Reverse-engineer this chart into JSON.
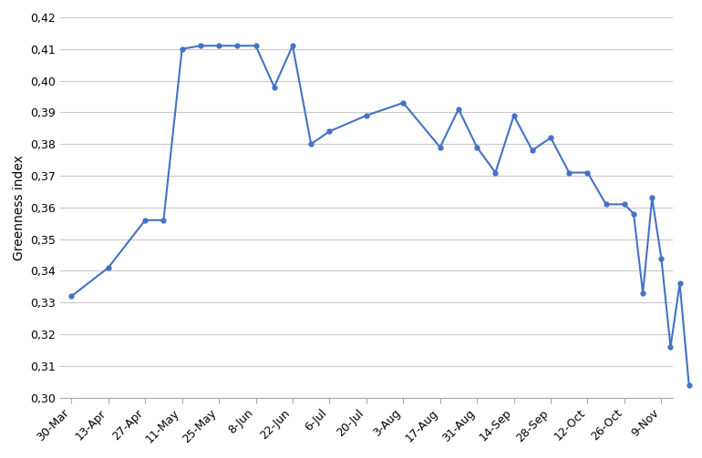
{
  "x_labels": [
    "30-Mar",
    "13-Apr",
    "27-Apr",
    "11-May",
    "25-May",
    "8-Jun",
    "22-Jun",
    "6-Jul",
    "20-Jul",
    "3-Aug",
    "17-Aug",
    "31-Aug",
    "14-Sep",
    "28-Sep",
    "12-Oct",
    "26-Oct",
    "9-Nov"
  ],
  "data_x": [
    0,
    1,
    2,
    2.5,
    3,
    3.5,
    4,
    4.5,
    5,
    5.5,
    6,
    6.5,
    7,
    8,
    9,
    10,
    10.5,
    11,
    11.5,
    12,
    12.5,
    13,
    13.5,
    14,
    14.5,
    15,
    15.25,
    15.5,
    15.75,
    16,
    16.25,
    16.5,
    16.75
  ],
  "data_y": [
    0.332,
    0.341,
    0.356,
    0.356,
    0.41,
    0.411,
    0.411,
    0.411,
    0.411,
    0.398,
    0.411,
    0.38,
    0.384,
    0.389,
    0.393,
    0.379,
    0.391,
    0.379,
    0.371,
    0.389,
    0.378,
    0.382,
    0.371,
    0.371,
    0.361,
    0.361,
    0.358,
    0.333,
    0.363,
    0.344,
    0.316,
    0.336,
    0.304
  ],
  "line_color": "#4472C4",
  "marker": "o",
  "marker_size": 3.5,
  "line_width": 1.5,
  "ylabel": "Greenness index",
  "ylim": [
    0.3,
    0.42
  ],
  "yticks": [
    0.3,
    0.31,
    0.32,
    0.33,
    0.34,
    0.35,
    0.36,
    0.37,
    0.38,
    0.39,
    0.4,
    0.41,
    0.42
  ],
  "background_color": "#ffffff",
  "grid_color": "#c8c8c8",
  "axis_fontsize": 10,
  "tick_fontsize": 9
}
